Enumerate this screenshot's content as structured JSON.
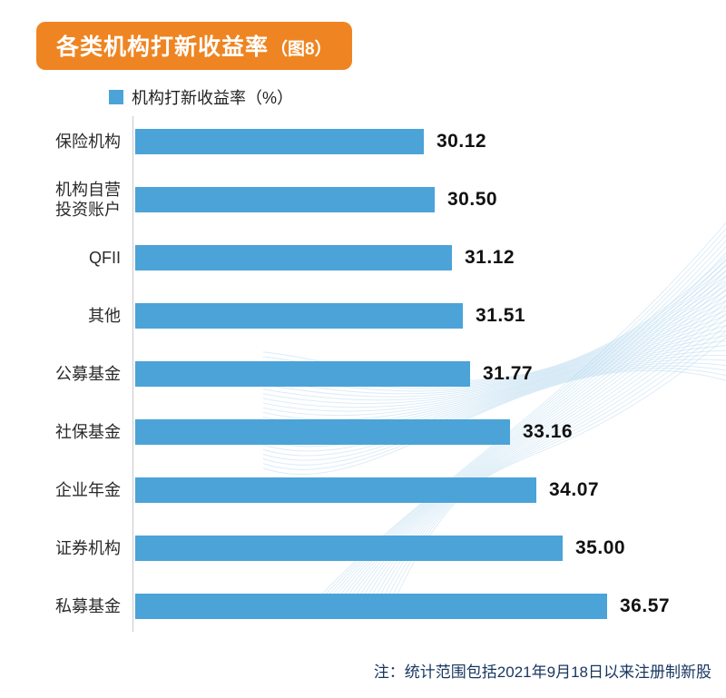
{
  "header": {
    "title": "各类机构打新收益率",
    "title_suffix": "（图8）",
    "badge_color": "#EE8522"
  },
  "legend": {
    "label": "机构打新收益率（%）",
    "swatch_color": "#4BA3D8"
  },
  "chart_data": {
    "type": "bar",
    "orientation": "horizontal",
    "title": "各类机构打新收益率（图8）",
    "series_name": "机构打新收益率（%）",
    "categories": [
      "保险机构",
      "机构自营\n投资账户",
      "QFII",
      "其他",
      "公募基金",
      "社保基金",
      "企业年金",
      "证券机构",
      "私募基金"
    ],
    "values": [
      30.12,
      30.5,
      31.12,
      31.51,
      31.77,
      33.16,
      34.07,
      35.0,
      36.57
    ],
    "value_labels": [
      "30.12",
      "30.50",
      "31.12",
      "31.51",
      "31.77",
      "33.16",
      "34.07",
      "35.00",
      "36.57"
    ],
    "bar_color": "#4BA3D8",
    "xlim": [
      20,
      38
    ],
    "grid": false,
    "legend_position": "top-left"
  },
  "footnote": "注：统计范围包括2021年9月18日以来注册制新股"
}
